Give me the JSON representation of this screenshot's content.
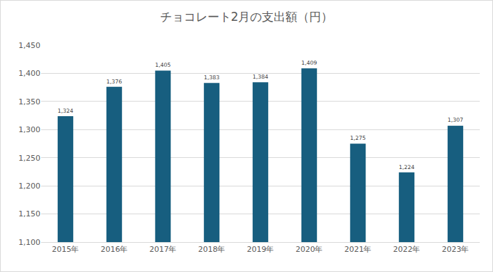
{
  "chart_data": {
    "type": "bar",
    "title": "チョコレート2月の支出額（円）",
    "categories": [
      "2015年",
      "2016年",
      "2017年",
      "2018年",
      "2019年",
      "2020年",
      "2021年",
      "2022年",
      "2023年"
    ],
    "values": [
      1324,
      1376,
      1405,
      1383,
      1384,
      1409,
      1275,
      1224,
      1307
    ],
    "value_labels": [
      "1,324",
      "1,376",
      "1,405",
      "1,383",
      "1,384",
      "1,409",
      "1,275",
      "1,224",
      "1,307"
    ],
    "color": "#175e7f",
    "ylim": [
      1100,
      1450
    ],
    "yticks": [
      {
        "value": 1100,
        "label": "1,100"
      },
      {
        "value": 1150,
        "label": "1,150"
      },
      {
        "value": 1200,
        "label": "1,200"
      },
      {
        "value": 1250,
        "label": "1,250"
      },
      {
        "value": 1300,
        "label": "1,300"
      },
      {
        "value": 1350,
        "label": "1,350"
      },
      {
        "value": 1400,
        "label": "1,400"
      },
      {
        "value": 1450,
        "label": "1,450"
      }
    ],
    "grid": true,
    "data_labels": true
  }
}
